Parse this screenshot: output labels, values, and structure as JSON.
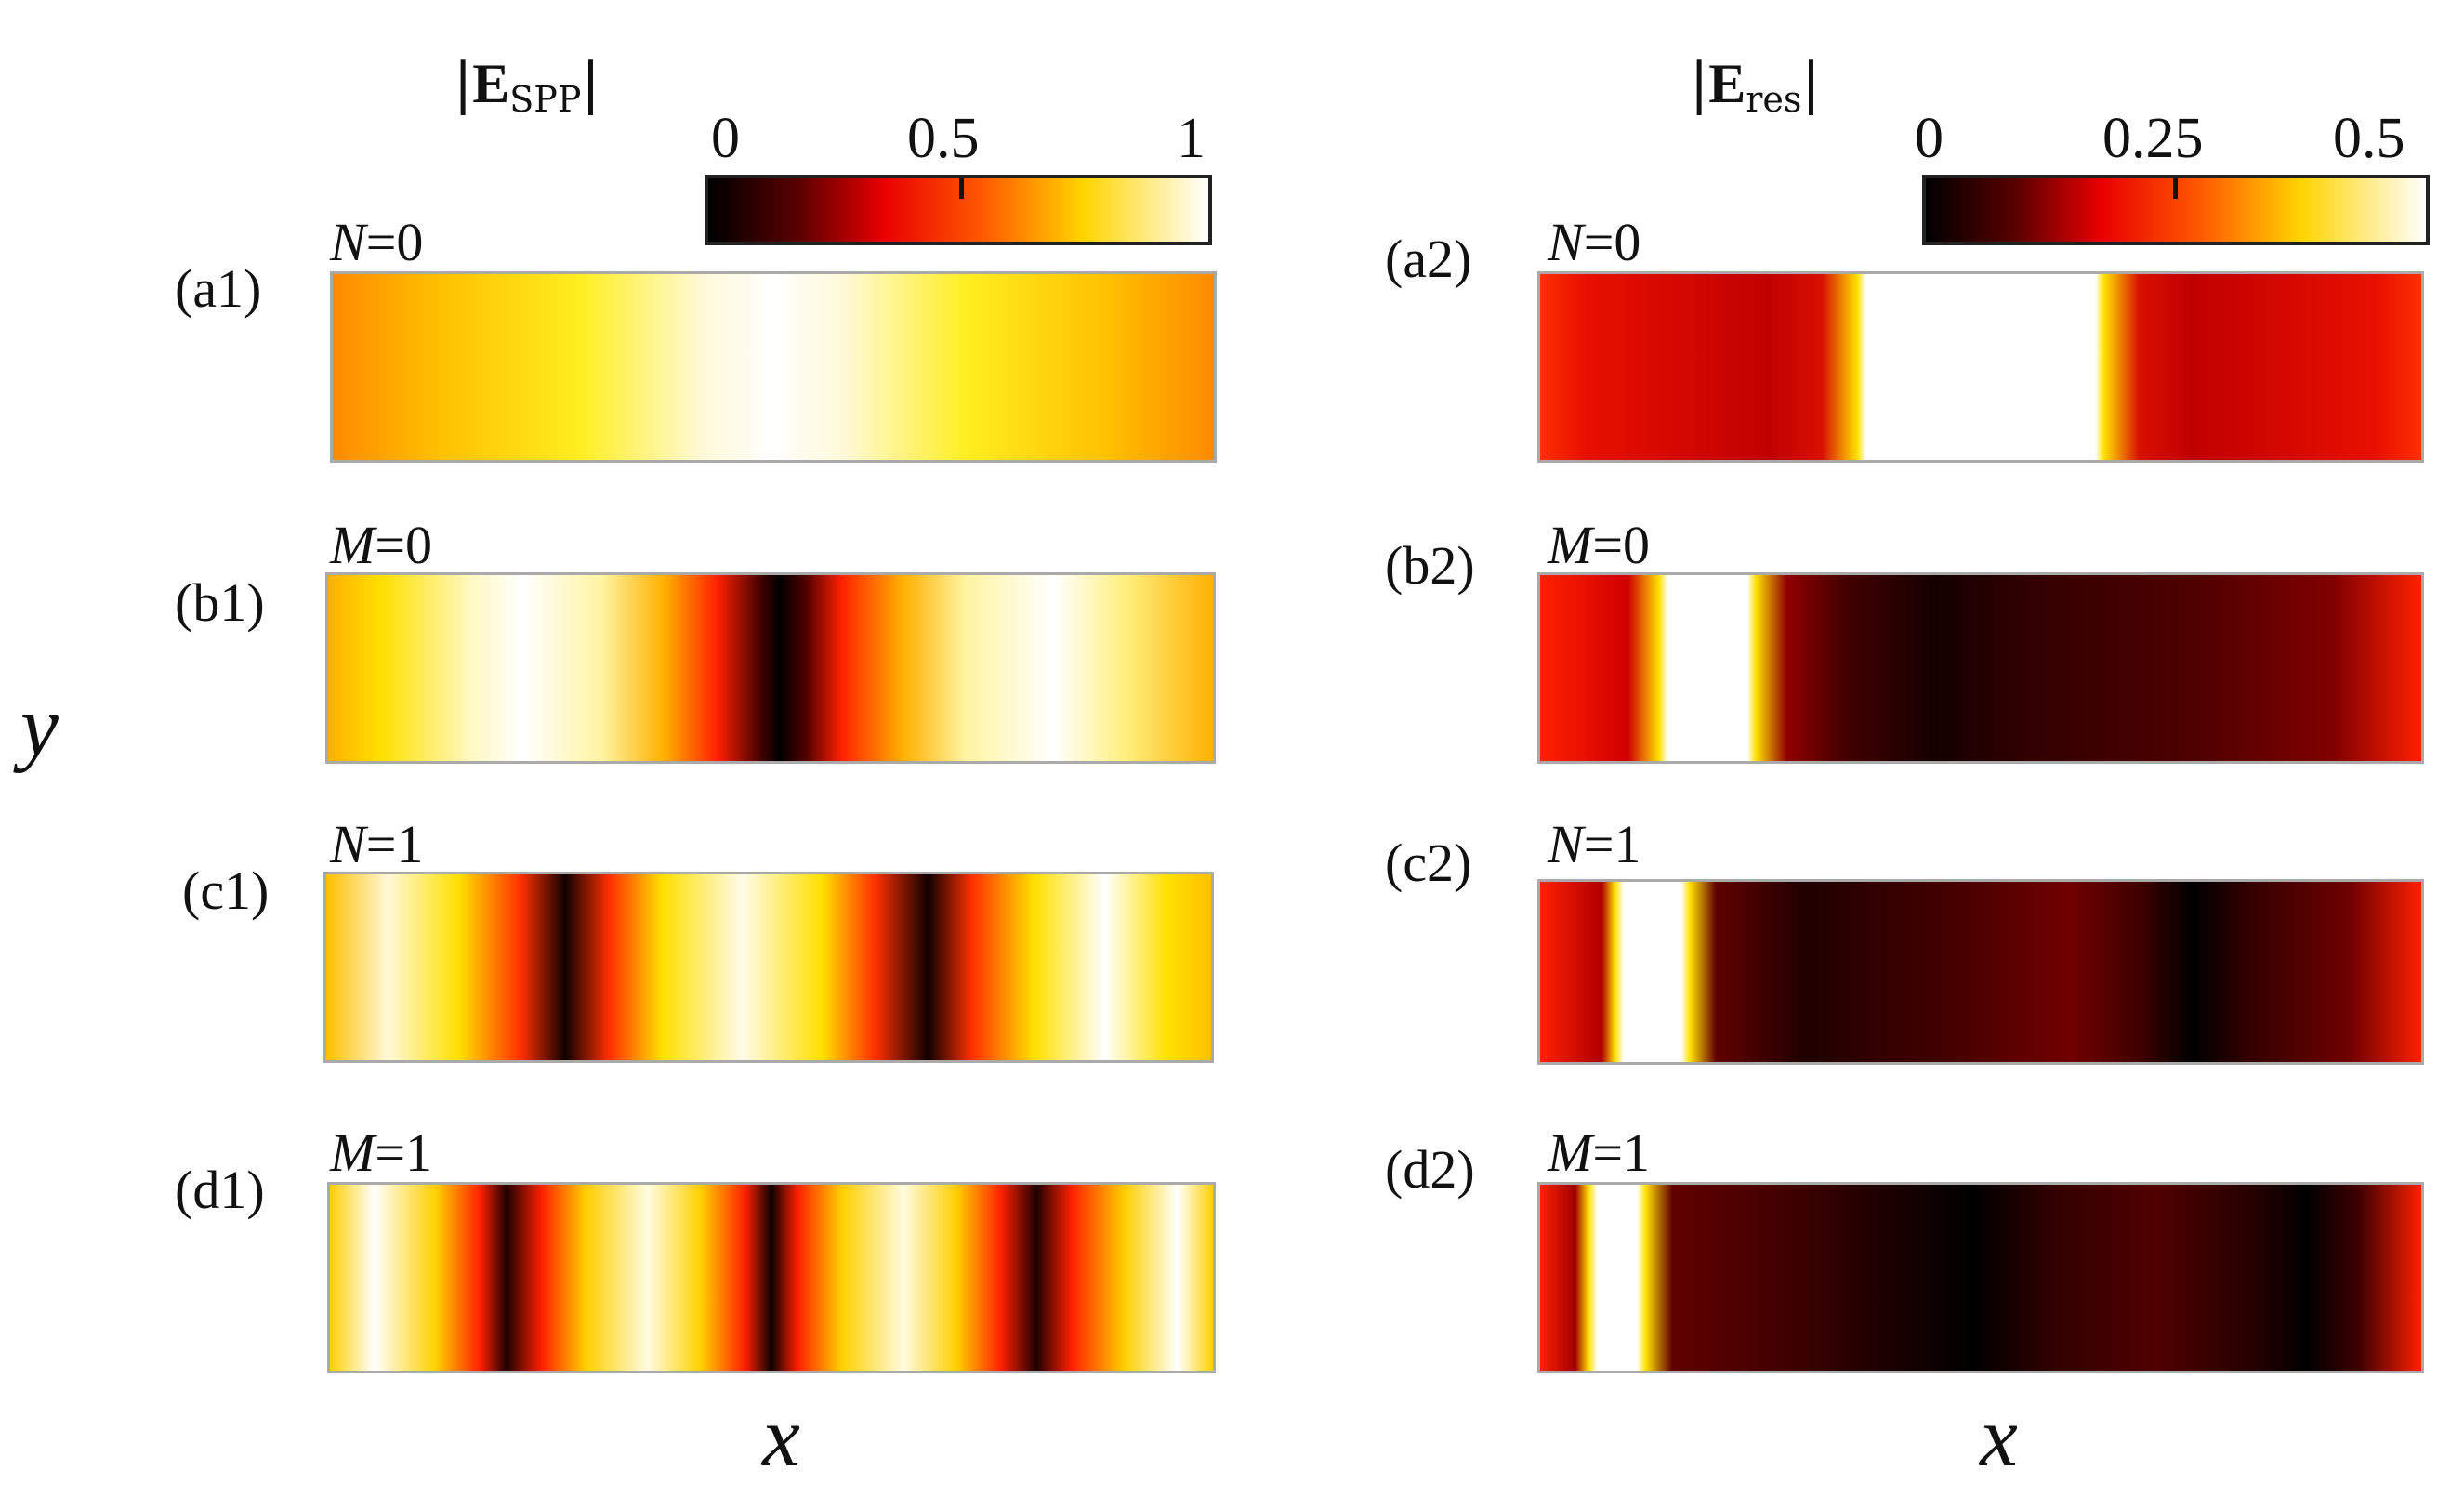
{
  "colorbars": {
    "left": {
      "title_bold": "E",
      "title_sub": "SPP",
      "ticks": [
        "0",
        "0.5",
        "1"
      ]
    },
    "right": {
      "title_bold": "E",
      "title_sub": "res",
      "ticks": [
        "0",
        "0.25",
        "0.5"
      ]
    }
  },
  "panels": {
    "a1": {
      "label": "(a1)",
      "mode_var": "N",
      "mode_val": "=0"
    },
    "b1": {
      "label": "(b1)",
      "mode_var": "M",
      "mode_val": "=0"
    },
    "c1": {
      "label": "(c1)",
      "mode_var": "N",
      "mode_val": "=1"
    },
    "d1": {
      "label": "(d1)",
      "mode_var": "M",
      "mode_val": "=1"
    },
    "a2": {
      "label": "(a2)",
      "mode_var": "N",
      "mode_val": "=0"
    },
    "b2": {
      "label": "(b2)",
      "mode_var": "M",
      "mode_val": "=0"
    },
    "c2": {
      "label": "(c2)",
      "mode_var": "N",
      "mode_val": "=1"
    },
    "d2": {
      "label": "(d2)",
      "mode_var": "M",
      "mode_val": "=1"
    }
  },
  "axes": {
    "x_label": "x",
    "y_label": "y"
  }
}
